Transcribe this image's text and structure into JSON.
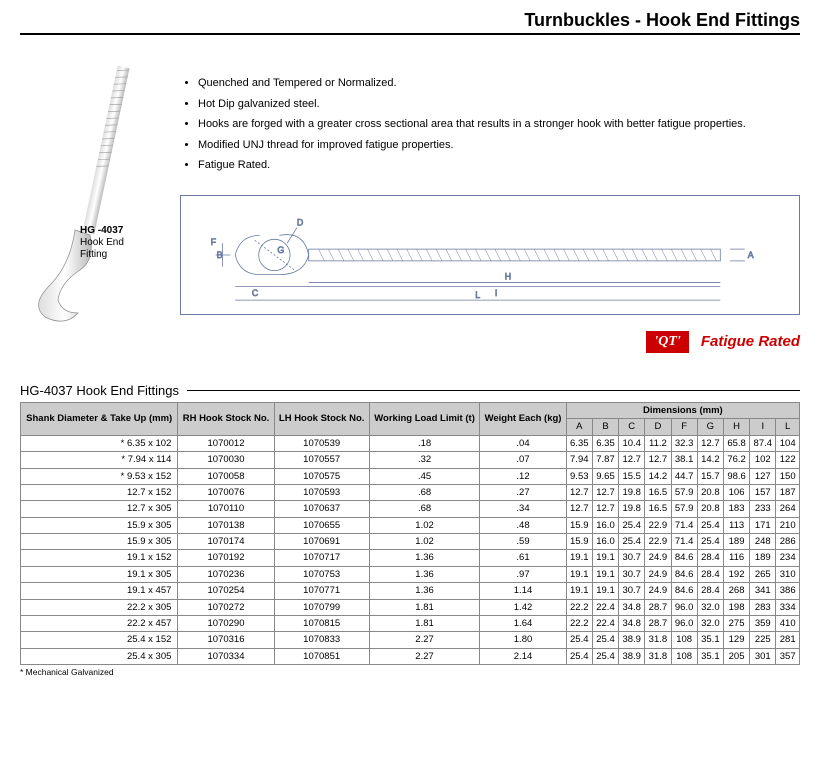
{
  "page_title": "Turnbuckles - Hook End Fittings",
  "product": {
    "code": "HG -4037",
    "name": "Hook End\nFitting"
  },
  "bullets": [
    "Quenched and Tempered or Normalized.",
    "Hot Dip galvanized steel.",
    "Hooks are forged with a greater cross sectional area that results in a stronger hook with better fatigue properties.",
    "Modified UNJ thread for improved fatigue properties.",
    "Fatigue Rated."
  ],
  "diagram_dim_labels": [
    "A",
    "B",
    "C",
    "D",
    "F",
    "G",
    "H",
    "I",
    "L"
  ],
  "badges": {
    "qt": "'QT'",
    "fatigue": "Fatigue Rated"
  },
  "table": {
    "title": "HG-4037 Hook End Fittings",
    "head": {
      "shank": "Shank Diameter & Take Up (mm)",
      "rh": "RH Hook Stock No.",
      "lh": "LH Hook Stock No.",
      "wll": "Working Load Limit (t)",
      "weight": "Weight Each (kg)",
      "dims": "Dimensions (mm)",
      "dim_cols": [
        "A",
        "B",
        "C",
        "D",
        "F",
        "G",
        "H",
        "I",
        "L"
      ]
    },
    "rows": [
      [
        "* 6.35 x 102",
        "1070012",
        "1070539",
        ".18",
        ".04",
        "6.35",
        "6.35",
        "10.4",
        "11.2",
        "32.3",
        "12.7",
        "65.8",
        "87.4",
        "104"
      ],
      [
        "* 7.94 x 114",
        "1070030",
        "1070557",
        ".32",
        ".07",
        "7.94",
        "7.87",
        "12.7",
        "12.7",
        "38.1",
        "14.2",
        "76.2",
        "102",
        "122"
      ],
      [
        "* 9.53 x 152",
        "1070058",
        "1070575",
        ".45",
        ".12",
        "9.53",
        "9.65",
        "15.5",
        "14.2",
        "44.7",
        "15.7",
        "98.6",
        "127",
        "150"
      ],
      [
        "12.7 x 152",
        "1070076",
        "1070593",
        ".68",
        ".27",
        "12.7",
        "12.7",
        "19.8",
        "16.5",
        "57.9",
        "20.8",
        "106",
        "157",
        "187"
      ],
      [
        "12.7 x 305",
        "1070110",
        "1070637",
        ".68",
        ".34",
        "12.7",
        "12.7",
        "19.8",
        "16.5",
        "57.9",
        "20.8",
        "183",
        "233",
        "264"
      ],
      [
        "15.9 x 305",
        "1070138",
        "1070655",
        "1.02",
        ".48",
        "15.9",
        "16.0",
        "25.4",
        "22.9",
        "71.4",
        "25.4",
        "113",
        "171",
        "210"
      ],
      [
        "15.9 x 305",
        "1070174",
        "1070691",
        "1.02",
        ".59",
        "15.9",
        "16.0",
        "25.4",
        "22.9",
        "71.4",
        "25.4",
        "189",
        "248",
        "286"
      ],
      [
        "19.1 x 152",
        "1070192",
        "1070717",
        "1.36",
        ".61",
        "19.1",
        "19.1",
        "30.7",
        "24.9",
        "84.6",
        "28.4",
        "116",
        "189",
        "234"
      ],
      [
        "19.1 x 305",
        "1070236",
        "1070753",
        "1.36",
        ".97",
        "19.1",
        "19.1",
        "30.7",
        "24.9",
        "84.6",
        "28.4",
        "192",
        "265",
        "310"
      ],
      [
        "19.1 x 457",
        "1070254",
        "1070771",
        "1.36",
        "1.14",
        "19.1",
        "19.1",
        "30.7",
        "24.9",
        "84.6",
        "28.4",
        "268",
        "341",
        "386"
      ],
      [
        "22.2 x 305",
        "1070272",
        "1070799",
        "1.81",
        "1.42",
        "22.2",
        "22.4",
        "34.8",
        "28.7",
        "96.0",
        "32.0",
        "198",
        "283",
        "334"
      ],
      [
        "22.2 x 457",
        "1070290",
        "1070815",
        "1.81",
        "1.64",
        "22.2",
        "22.4",
        "34.8",
        "28.7",
        "96.0",
        "32.0",
        "275",
        "359",
        "410"
      ],
      [
        "25.4 x 152",
        "1070316",
        "1070833",
        "2.27",
        "1.80",
        "25.4",
        "25.4",
        "38.9",
        "31.8",
        "108",
        "35.1",
        "129",
        "225",
        "281"
      ],
      [
        "25.4 x 305",
        "1070334",
        "1070851",
        "2.27",
        "2.14",
        "25.4",
        "25.4",
        "38.9",
        "31.8",
        "108",
        "35.1",
        "205",
        "301",
        "357"
      ]
    ],
    "footnote": "* Mechanical Galvanized"
  },
  "colors": {
    "border_blue": "#6a7aa0",
    "header_bg": "#cccccc",
    "red": "#cc0000"
  }
}
